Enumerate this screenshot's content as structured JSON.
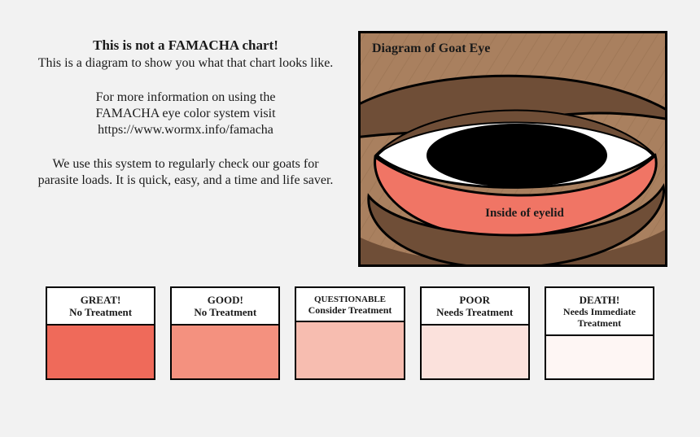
{
  "text": {
    "headline": "This is not a FAMACHA chart!",
    "p1": "This is a diagram to show you what that chart looks like.",
    "p2a": "For more information on using the",
    "p2b": "FAMACHA eye color system visit",
    "p2c": "https://www.wormx.info/famacha",
    "p3": "We use this system to regularly check our goats for parasite loads.  It is quick, easy, and a time and life saver."
  },
  "eye": {
    "title": "Diagram of Goat Eye",
    "eyelid_label": "Inside of eyelid",
    "bg_color": "#a9805f",
    "fur_color": "#6f4e37",
    "sclera_color": "#ffffff",
    "pupil_color": "#000000",
    "eyelid_color": "#f07565",
    "stroke": "#000000"
  },
  "scale": [
    {
      "line1": "GREAT!",
      "line2": "No Treatment",
      "color": "#ef6a5a"
    },
    {
      "line1": "GOOD!",
      "line2": "No Treatment",
      "color": "#f4917f"
    },
    {
      "line1": "QUESTIONABLE",
      "line2": "Consider Treatment",
      "color": "#f7bdb0"
    },
    {
      "line1": "POOR",
      "line2": "Needs Treatment",
      "color": "#fbe1dc"
    },
    {
      "line1": "DEATH!",
      "line2": "Needs Immediate Treatment",
      "color": "#fef6f4"
    }
  ],
  "layout": {
    "card_border": "#000000",
    "page_bg": "#f2f2f2"
  }
}
